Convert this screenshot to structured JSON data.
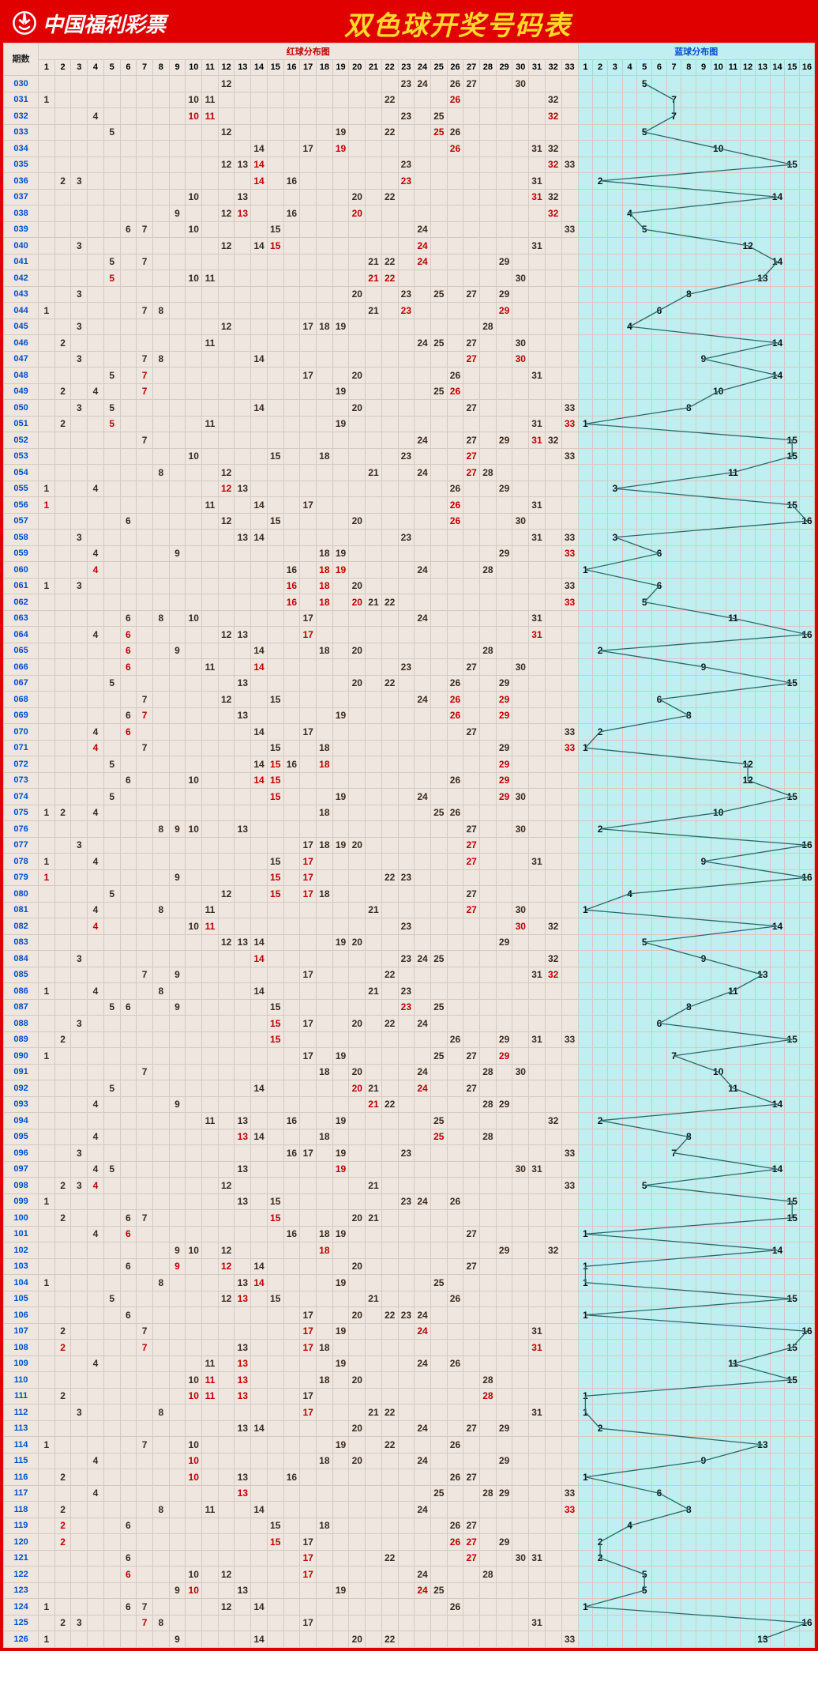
{
  "header": {
    "brand": "中国福利彩票",
    "title": "双色球开奖号码表"
  },
  "layout": {
    "issue_label": "期数",
    "red_section_label": "红球分布图",
    "blue_section_label": "蓝球分布图",
    "red_max": 33,
    "blue_max": 16,
    "issue_col_width": 44,
    "red_col_width": 20.7,
    "blue_col_width": 18.7,
    "row_height": 20.6,
    "header_rows_height": 38
  },
  "colors": {
    "frame_red": "#e00000",
    "title_yellow": "#FFD92A",
    "red_bg": "#eee6df",
    "blue_bg": "#bfeff0",
    "red_hit": "#3a2a1e",
    "red_dup": "#c00000",
    "blue_line": "#2a6a6a",
    "grid_red": "#d6c9c0",
    "grid_blue": "#a9d8d9"
  },
  "rows": [
    {
      "issue": "030",
      "red": [
        12,
        23,
        24,
        26,
        27,
        30
      ],
      "blue": 5
    },
    {
      "issue": "031",
      "red": [
        1,
        10,
        11,
        22,
        26,
        32
      ],
      "blue": 7
    },
    {
      "issue": "032",
      "red": [
        4,
        10,
        11,
        23,
        25,
        32
      ],
      "blue": 7
    },
    {
      "issue": "033",
      "red": [
        5,
        12,
        19,
        22,
        25,
        26
      ],
      "blue": 5
    },
    {
      "issue": "034",
      "red": [
        14,
        17,
        19,
        26,
        31,
        32
      ],
      "blue": 10
    },
    {
      "issue": "035",
      "red": [
        12,
        13,
        14,
        23,
        32,
        33
      ],
      "blue": 15
    },
    {
      "issue": "036",
      "red": [
        2,
        3,
        14,
        16,
        23,
        31
      ],
      "blue": 2
    },
    {
      "issue": "037",
      "red": [
        10,
        13,
        20,
        22,
        31,
        32
      ],
      "blue": 14
    },
    {
      "issue": "038",
      "red": [
        9,
        12,
        13,
        16,
        20,
        32
      ],
      "blue": 4
    },
    {
      "issue": "039",
      "red": [
        6,
        7,
        10,
        15,
        24,
        33
      ],
      "blue": 5
    },
    {
      "issue": "040",
      "red": [
        3,
        12,
        14,
        15,
        24,
        31
      ],
      "blue": 12
    },
    {
      "issue": "041",
      "red": [
        5,
        7,
        21,
        22,
        24,
        29
      ],
      "blue": 14
    },
    {
      "issue": "042",
      "red": [
        5,
        10,
        11,
        21,
        22,
        30
      ],
      "blue": 13
    },
    {
      "issue": "043",
      "red": [
        3,
        20,
        23,
        25,
        27,
        29
      ],
      "blue": 8
    },
    {
      "issue": "044",
      "red": [
        1,
        7,
        8,
        21,
        23,
        29
      ],
      "blue": 6
    },
    {
      "issue": "045",
      "red": [
        3,
        12,
        17,
        18,
        19,
        28
      ],
      "blue": 4
    },
    {
      "issue": "046",
      "red": [
        2,
        11,
        24,
        25,
        27,
        30
      ],
      "blue": 14
    },
    {
      "issue": "047",
      "red": [
        3,
        7,
        8,
        14,
        27,
        30
      ],
      "blue": 9
    },
    {
      "issue": "048",
      "red": [
        5,
        7,
        17,
        20,
        26,
        31
      ],
      "blue": 14
    },
    {
      "issue": "049",
      "red": [
        2,
        4,
        7,
        19,
        25,
        26
      ],
      "blue": 10
    },
    {
      "issue": "050",
      "red": [
        3,
        5,
        14,
        20,
        27,
        33
      ],
      "blue": 8
    },
    {
      "issue": "051",
      "red": [
        2,
        5,
        11,
        19,
        31,
        33
      ],
      "blue": 1
    },
    {
      "issue": "052",
      "red": [
        7,
        24,
        27,
        29,
        31,
        32
      ],
      "blue": 15
    },
    {
      "issue": "053",
      "red": [
        10,
        15,
        18,
        23,
        27,
        33
      ],
      "blue": 15
    },
    {
      "issue": "054",
      "red": [
        8,
        12,
        21,
        24,
        27,
        28
      ],
      "blue": 11
    },
    {
      "issue": "055",
      "red": [
        1,
        4,
        12,
        13,
        26,
        29
      ],
      "blue": 3
    },
    {
      "issue": "056",
      "red": [
        1,
        11,
        14,
        17,
        26,
        31
      ],
      "blue": 15
    },
    {
      "issue": "057",
      "red": [
        6,
        12,
        15,
        20,
        26,
        30
      ],
      "blue": 16
    },
    {
      "issue": "058",
      "red": [
        3,
        13,
        14,
        23,
        31,
        33
      ],
      "blue": 3
    },
    {
      "issue": "059",
      "red": [
        4,
        9,
        18,
        19,
        29,
        33
      ],
      "blue": 6
    },
    {
      "issue": "060",
      "red": [
        4,
        16,
        18,
        19,
        24,
        28
      ],
      "blue": 1
    },
    {
      "issue": "061",
      "red": [
        1,
        3,
        16,
        18,
        20,
        33
      ],
      "blue": 6
    },
    {
      "issue": "062",
      "red": [
        16,
        18,
        20,
        21,
        22,
        33
      ],
      "blue": 5
    },
    {
      "issue": "063",
      "red": [
        6,
        8,
        10,
        17,
        24,
        31
      ],
      "blue": 11
    },
    {
      "issue": "064",
      "red": [
        4,
        6,
        12,
        13,
        17,
        31
      ],
      "blue": 16
    },
    {
      "issue": "065",
      "red": [
        6,
        9,
        14,
        18,
        20,
        28
      ],
      "blue": 2
    },
    {
      "issue": "066",
      "red": [
        6,
        11,
        14,
        23,
        27,
        30
      ],
      "blue": 9
    },
    {
      "issue": "067",
      "red": [
        5,
        13,
        20,
        22,
        26,
        29
      ],
      "blue": 15
    },
    {
      "issue": "068",
      "red": [
        7,
        12,
        15,
        24,
        26,
        29
      ],
      "blue": 6
    },
    {
      "issue": "069",
      "red": [
        6,
        7,
        13,
        19,
        26,
        29
      ],
      "blue": 8
    },
    {
      "issue": "070",
      "red": [
        4,
        6,
        14,
        17,
        27,
        33
      ],
      "blue": 2
    },
    {
      "issue": "071",
      "red": [
        4,
        7,
        15,
        18,
        29,
        33
      ],
      "blue": 1
    },
    {
      "issue": "072",
      "red": [
        5,
        14,
        15,
        16,
        18,
        29
      ],
      "blue": 12
    },
    {
      "issue": "073",
      "red": [
        6,
        10,
        14,
        15,
        26,
        29
      ],
      "blue": 12
    },
    {
      "issue": "074",
      "red": [
        5,
        15,
        19,
        24,
        29,
        30
      ],
      "blue": 15
    },
    {
      "issue": "075",
      "red": [
        1,
        2,
        4,
        18,
        25,
        26
      ],
      "blue": 10
    },
    {
      "issue": "076",
      "red": [
        8,
        9,
        10,
        13,
        27,
        30
      ],
      "blue": 2
    },
    {
      "issue": "077",
      "red": [
        3,
        17,
        18,
        19,
        20,
        27
      ],
      "blue": 16
    },
    {
      "issue": "078",
      "red": [
        1,
        4,
        15,
        17,
        27,
        31
      ],
      "blue": 9
    },
    {
      "issue": "079",
      "red": [
        1,
        9,
        15,
        17,
        22,
        23
      ],
      "blue": 16
    },
    {
      "issue": "080",
      "red": [
        5,
        12,
        15,
        17,
        18,
        27
      ],
      "blue": 4
    },
    {
      "issue": "081",
      "red": [
        4,
        8,
        11,
        21,
        27,
        30
      ],
      "blue": 1
    },
    {
      "issue": "082",
      "red": [
        4,
        10,
        11,
        23,
        30,
        32
      ],
      "blue": 14
    },
    {
      "issue": "083",
      "red": [
        12,
        13,
        14,
        19,
        20,
        29
      ],
      "blue": 5
    },
    {
      "issue": "084",
      "red": [
        3,
        14,
        23,
        24,
        25,
        32
      ],
      "blue": 9
    },
    {
      "issue": "085",
      "red": [
        7,
        9,
        17,
        22,
        31,
        32
      ],
      "blue": 13
    },
    {
      "issue": "086",
      "red": [
        1,
        4,
        8,
        14,
        21,
        23
      ],
      "blue": 11
    },
    {
      "issue": "087",
      "red": [
        5,
        6,
        9,
        15,
        23,
        25
      ],
      "blue": 8
    },
    {
      "issue": "088",
      "red": [
        3,
        15,
        17,
        20,
        22,
        24
      ],
      "blue": 6
    },
    {
      "issue": "089",
      "red": [
        2,
        15,
        26,
        29,
        31,
        33
      ],
      "blue": 15
    },
    {
      "issue": "090",
      "red": [
        1,
        17,
        19,
        25,
        27,
        29
      ],
      "blue": 7
    },
    {
      "issue": "091",
      "red": [
        7,
        18,
        20,
        24,
        28,
        30
      ],
      "blue": 10
    },
    {
      "issue": "092",
      "red": [
        5,
        14,
        20,
        21,
        24,
        27
      ],
      "blue": 11
    },
    {
      "issue": "093",
      "red": [
        4,
        9,
        21,
        22,
        28,
        29
      ],
      "blue": 14
    },
    {
      "issue": "094",
      "red": [
        11,
        13,
        16,
        19,
        25,
        32
      ],
      "blue": 2
    },
    {
      "issue": "095",
      "red": [
        4,
        13,
        14,
        18,
        25,
        28
      ],
      "blue": 8
    },
    {
      "issue": "096",
      "red": [
        3,
        16,
        17,
        19,
        23,
        33
      ],
      "blue": 7
    },
    {
      "issue": "097",
      "red": [
        4,
        5,
        13,
        19,
        30,
        31
      ],
      "blue": 14
    },
    {
      "issue": "098",
      "red": [
        2,
        3,
        4,
        12,
        21,
        33
      ],
      "blue": 5
    },
    {
      "issue": "099",
      "red": [
        1,
        13,
        15,
        23,
        24,
        26
      ],
      "blue": 15
    },
    {
      "issue": "100",
      "red": [
        2,
        6,
        7,
        15,
        20,
        21
      ],
      "blue": 15
    },
    {
      "issue": "101",
      "red": [
        4,
        6,
        16,
        18,
        19,
        27
      ],
      "blue": 1
    },
    {
      "issue": "102",
      "red": [
        9,
        10,
        12,
        18,
        29,
        32
      ],
      "blue": 14
    },
    {
      "issue": "103",
      "red": [
        6,
        9,
        12,
        14,
        20,
        27
      ],
      "blue": 1
    },
    {
      "issue": "104",
      "red": [
        1,
        8,
        13,
        14,
        19,
        25
      ],
      "blue": 1
    },
    {
      "issue": "105",
      "red": [
        5,
        12,
        13,
        15,
        21,
        26
      ],
      "blue": 15
    },
    {
      "issue": "106",
      "red": [
        6,
        17,
        20,
        22,
        23,
        24
      ],
      "blue": 1
    },
    {
      "issue": "107",
      "red": [
        2,
        7,
        17,
        19,
        24,
        31
      ],
      "blue": 16
    },
    {
      "issue": "108",
      "red": [
        2,
        7,
        13,
        17,
        18,
        31
      ],
      "blue": 15
    },
    {
      "issue": "109",
      "red": [
        4,
        11,
        13,
        19,
        24,
        26
      ],
      "blue": 11
    },
    {
      "issue": "110",
      "red": [
        10,
        11,
        13,
        18,
        20,
        28
      ],
      "blue": 15
    },
    {
      "issue": "111",
      "red": [
        2,
        10,
        11,
        13,
        17,
        28
      ],
      "blue": 1
    },
    {
      "issue": "112",
      "red": [
        3,
        8,
        17,
        21,
        22,
        31
      ],
      "blue": 1
    },
    {
      "issue": "113",
      "red": [
        13,
        14,
        20,
        24,
        27,
        29
      ],
      "blue": 2
    },
    {
      "issue": "114",
      "red": [
        1,
        7,
        10,
        19,
        22,
        26
      ],
      "blue": 13
    },
    {
      "issue": "115",
      "red": [
        4,
        10,
        18,
        20,
        24,
        29
      ],
      "blue": 9
    },
    {
      "issue": "116",
      "red": [
        2,
        10,
        13,
        16,
        26,
        27
      ],
      "blue": 1
    },
    {
      "issue": "117",
      "red": [
        4,
        13,
        25,
        28,
        29,
        33
      ],
      "blue": 6
    },
    {
      "issue": "118",
      "red": [
        2,
        8,
        11,
        14,
        24,
        33
      ],
      "blue": 8
    },
    {
      "issue": "119",
      "red": [
        2,
        6,
        15,
        18,
        26,
        27
      ],
      "blue": 4
    },
    {
      "issue": "120",
      "red": [
        2,
        15,
        17,
        26,
        27,
        29
      ],
      "blue": 2
    },
    {
      "issue": "121",
      "red": [
        6,
        17,
        22,
        27,
        30,
        31
      ],
      "blue": 2
    },
    {
      "issue": "122",
      "red": [
        6,
        10,
        12,
        17,
        24,
        28
      ],
      "blue": 5
    },
    {
      "issue": "123",
      "red": [
        9,
        10,
        13,
        19,
        24,
        25
      ],
      "blue": 5
    },
    {
      "issue": "124",
      "red": [
        1,
        6,
        7,
        12,
        14,
        26
      ],
      "blue": 1
    },
    {
      "issue": "125",
      "red": [
        2,
        3,
        7,
        8,
        17,
        31
      ],
      "blue": 16
    },
    {
      "issue": "126",
      "red": [
        1,
        9,
        14,
        20,
        22,
        33
      ],
      "blue": 13
    }
  ]
}
